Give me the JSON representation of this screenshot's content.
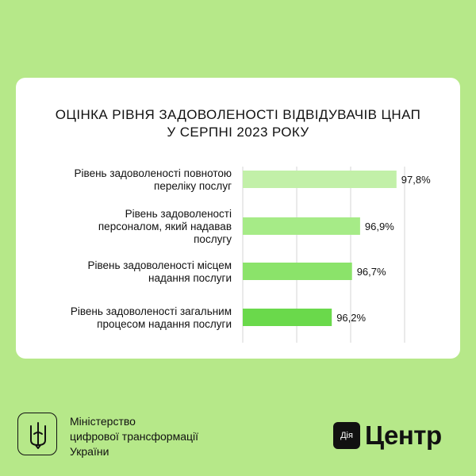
{
  "title_lines": [
    "ОЦІНКА РІВНЯ ЗАДОВОЛЕНОСТІ ВІДВІДУВАЧІВ ЦНАП",
    "У СЕРПНІ 2023 РОКУ"
  ],
  "chart_data": {
    "type": "bar",
    "orientation": "horizontal",
    "title": "ОЦІНКА РІВНЯ ЗАДОВОЛЕНОСТІ ВІДВІДУВАЧІВ ЦНАП У СЕРПНІ 2023 РОКУ",
    "categories": [
      [
        "Рівень задоволеності повнотою",
        "переліку послуг"
      ],
      [
        "Рівень задоволеності",
        "персоналом, який надавав",
        "послугу"
      ],
      [
        "Рівень задоволеності місцем",
        "надання послуги"
      ],
      [
        "Рівень задоволеності загальним",
        "процесом надання послуги"
      ]
    ],
    "values": [
      97.8,
      96.9,
      96.7,
      96.2
    ],
    "value_labels": [
      "97,8%",
      "96,9%",
      "96,7%",
      "96,2%"
    ],
    "bar_colors": [
      "#c2f0a8",
      "#a6eb87",
      "#8be36a",
      "#6ad94b"
    ],
    "grid": true,
    "xlim": [
      94.0,
      98.0
    ]
  },
  "footer": {
    "ministry_lines": [
      "Міністерство",
      "цифрової трансформації",
      "України"
    ],
    "diya_logo_text": "Дія",
    "center_text": "Центр"
  },
  "colors": {
    "background": "#b6e889",
    "card": "#ffffff",
    "text": "#111111",
    "grid": "#d6d6d6"
  }
}
